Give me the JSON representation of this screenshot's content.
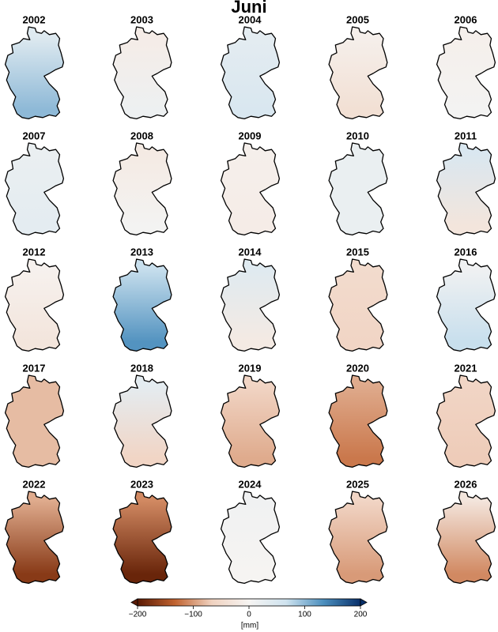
{
  "title": "Juni",
  "maps": [
    {
      "year": "2002",
      "values": [
        40,
        100
      ]
    },
    {
      "year": "2003",
      "values": [
        -15,
        15
      ]
    },
    {
      "year": "2004",
      "values": [
        30,
        50
      ]
    },
    {
      "year": "2005",
      "values": [
        -10,
        -40
      ]
    },
    {
      "year": "2006",
      "values": [
        -10,
        5
      ]
    },
    {
      "year": "2007",
      "values": [
        20,
        30
      ]
    },
    {
      "year": "2008",
      "values": [
        -20,
        5
      ]
    },
    {
      "year": "2009",
      "values": [
        -10,
        -15
      ]
    },
    {
      "year": "2010",
      "values": [
        20,
        20
      ]
    },
    {
      "year": "2011",
      "values": [
        50,
        -30
      ]
    },
    {
      "year": "2012",
      "values": [
        -5,
        -30
      ]
    },
    {
      "year": "2013",
      "values": [
        70,
        130
      ]
    },
    {
      "year": "2014",
      "values": [
        40,
        -20
      ]
    },
    {
      "year": "2015",
      "values": [
        -50,
        -60
      ]
    },
    {
      "year": "2016",
      "values": [
        10,
        70
      ]
    },
    {
      "year": "2017",
      "values": [
        -80,
        -80
      ]
    },
    {
      "year": "2018",
      "values": [
        30,
        -60
      ]
    },
    {
      "year": "2019",
      "values": [
        -60,
        -90
      ]
    },
    {
      "year": "2020",
      "values": [
        -90,
        -120
      ]
    },
    {
      "year": "2021",
      "values": [
        -60,
        -70
      ]
    },
    {
      "year": "2022",
      "values": [
        -90,
        -170
      ]
    },
    {
      "year": "2023",
      "values": [
        -110,
        -190
      ]
    },
    {
      "year": "2024",
      "values": [
        10,
        0
      ]
    },
    {
      "year": "2025",
      "values": [
        -60,
        -100
      ]
    },
    {
      "year": "2026",
      "values": [
        -30,
        -110
      ]
    }
  ],
  "colorbar": {
    "label": "[mm]",
    "lim": [
      -200,
      200
    ],
    "ticks": [
      {
        "value": -200,
        "label": "−200"
      },
      {
        "value": -100,
        "label": "−100"
      },
      0,
      100,
      200
    ],
    "colormap": [
      "#5a1a04",
      "#c0622f",
      "#f0d2c0",
      "#f6f4f2",
      "#cfe3ef",
      "#4c8fbe",
      "#08306b"
    ]
  }
}
